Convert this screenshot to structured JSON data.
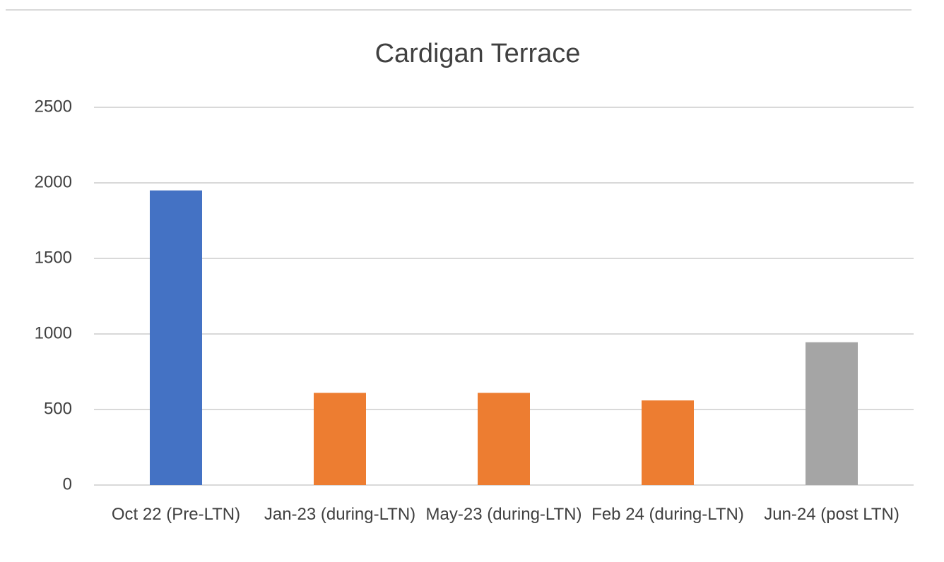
{
  "chart_data": {
    "type": "bar",
    "title": "Cardigan Terrace",
    "categories": [
      "Oct 22 (Pre-LTN)",
      "Jan-23 (during-LTN)",
      "May-23 (during-LTN)",
      "Feb 24 (during-LTN)",
      "Jun-24 (post LTN)"
    ],
    "values": [
      1950,
      610,
      610,
      560,
      945
    ],
    "colors": [
      "#4472c4",
      "#ed7d31",
      "#ed7d31",
      "#ed7d31",
      "#a5a5a5"
    ],
    "ylim": [
      0,
      2500
    ],
    "yticks": [
      0,
      500,
      1000,
      1500,
      2000,
      2500
    ],
    "grid": true
  }
}
